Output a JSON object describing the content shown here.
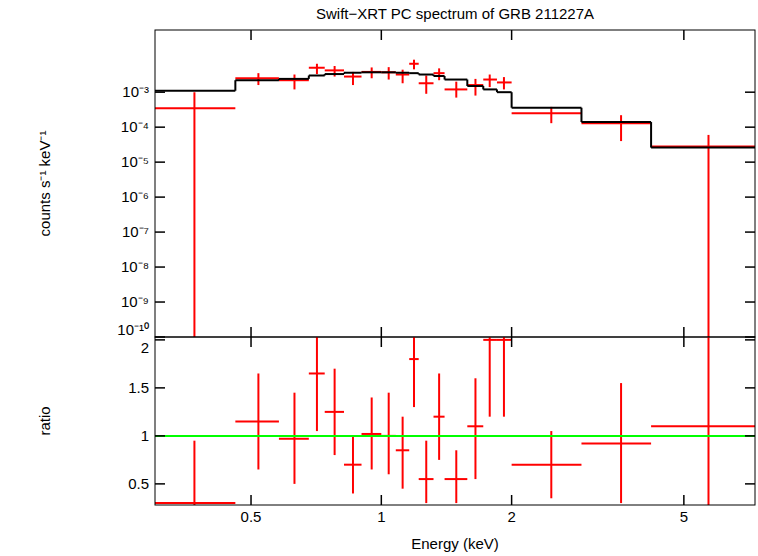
{
  "chart_data": [
    {
      "type": "scatter",
      "title": "Swift−XRT PC spectrum of GRB 211227A",
      "y_label": "counts s⁻¹ keV⁻¹",
      "log": true,
      "tick_labels": "y",
      "xlim": [
        0.3,
        7.3
      ],
      "ylim": [
        1e-10,
        0.06
      ],
      "xticks": [
        0.5,
        1,
        2,
        5
      ],
      "yticks": [
        {
          "value": 1e-10,
          "label": "10⁻¹⁰"
        },
        {
          "value": 1e-09,
          "label": "10⁻⁹"
        },
        {
          "value": 1e-08,
          "label": "10⁻⁸"
        },
        {
          "value": 1e-07,
          "label": "10⁻⁷"
        },
        {
          "value": 1e-06,
          "label": "10⁻⁶"
        },
        {
          "value": 1e-05,
          "label": "10⁻⁵"
        },
        {
          "value": 0.0001,
          "label": "10⁻⁴"
        },
        {
          "value": 0.001,
          "label": "10⁻³"
        }
      ],
      "bins": [
        0.3,
        0.46,
        0.58,
        0.68,
        0.74,
        0.82,
        0.9,
        1.0,
        1.08,
        1.16,
        1.22,
        1.32,
        1.4,
        1.58,
        1.72,
        1.85,
        2.0,
        2.9,
        4.2,
        7.3
      ],
      "x": [
        0.37,
        0.52,
        0.63,
        0.71,
        0.78,
        0.86,
        0.95,
        1.04,
        1.12,
        1.19,
        1.27,
        1.36,
        1.49,
        1.65,
        1.78,
        1.92,
        2.47,
        3.58,
        5.7
      ],
      "series": [
        {
          "type": "scatter",
          "marker": "cross",
          "color": "#ff0000",
          "values": [
            0.00035,
            0.0025,
            0.0022,
            0.005,
            0.0042,
            0.0028,
            0.0038,
            0.0037,
            0.0032,
            0.0065,
            0.0018,
            0.0035,
            0.0012,
            0.0016,
            0.0023,
            0.0019,
            0.00025,
            0.00013,
            2.8e-05
          ],
          "lower": [
            1e-11,
            0.0016,
            0.0012,
            0.0033,
            0.0028,
            0.0016,
            0.0025,
            0.0023,
            0.0018,
            0.0045,
            0.0009,
            0.0022,
            0.0007,
            0.0008,
            0.0014,
            0.0012,
            0.00013,
            4e-05,
            1e-11
          ],
          "upper": [
            0.001,
            0.0035,
            0.0032,
            0.0065,
            0.0056,
            0.0038,
            0.0051,
            0.0052,
            0.0044,
            0.0085,
            0.003,
            0.0048,
            0.002,
            0.0024,
            0.0032,
            0.0027,
            0.00038,
            0.00022,
            6e-05
          ]
        },
        {
          "type": "step",
          "color": "#000000",
          "values": [
            0.0011,
            0.0022,
            0.0024,
            0.003,
            0.0033,
            0.0036,
            0.0037,
            0.0037,
            0.0036,
            0.0035,
            0.0032,
            0.0029,
            0.0023,
            0.0015,
            0.0012,
            0.001,
            0.00036,
            0.00014,
            2.6e-05
          ]
        }
      ]
    },
    {
      "type": "scatter",
      "x_label": "Energy (keV)",
      "y_label": "ratio",
      "log": "x",
      "xlim": [
        0.3,
        7.3
      ],
      "ylim": [
        0.28,
        2.03
      ],
      "xticks": [
        0.5,
        1,
        2,
        5
      ],
      "yticks": [
        0.5,
        1,
        1.5,
        2
      ],
      "bins": [
        0.3,
        0.46,
        0.58,
        0.68,
        0.74,
        0.82,
        0.9,
        1.0,
        1.08,
        1.16,
        1.22,
        1.32,
        1.4,
        1.58,
        1.72,
        1.85,
        2.0,
        2.9,
        4.2,
        7.3
      ],
      "x": [
        0.37,
        0.52,
        0.63,
        0.71,
        0.78,
        0.86,
        0.95,
        1.04,
        1.12,
        1.19,
        1.27,
        1.36,
        1.49,
        1.65,
        1.78,
        1.92,
        2.47,
        3.58,
        5.7
      ],
      "series": [
        {
          "type": "scatter",
          "marker": "cross",
          "color": "#ff0000",
          "values": [
            0.3,
            1.15,
            0.97,
            1.65,
            1.25,
            0.7,
            1.02,
            1.0,
            0.85,
            1.8,
            0.55,
            1.2,
            0.55,
            1.1,
            2.0,
            2.0,
            0.7,
            0.92,
            1.1
          ],
          "lower": [
            0,
            0.65,
            0.5,
            1.05,
            0.8,
            0.4,
            0.65,
            0.6,
            0.45,
            1.3,
            0.3,
            0.75,
            0.3,
            0.55,
            1.2,
            1.2,
            0.35,
            0.3,
            0
          ],
          "upper": [
            0.95,
            1.65,
            1.45,
            2.3,
            1.7,
            1.0,
            1.4,
            1.45,
            1.2,
            2.4,
            0.95,
            1.65,
            0.85,
            1.6,
            2.8,
            2.8,
            1.05,
            1.55,
            2.5
          ]
        },
        {
          "type": "line",
          "color": "#00ff00",
          "x": [
            0.3,
            7.3
          ],
          "values": [
            1,
            1
          ]
        }
      ]
    }
  ]
}
